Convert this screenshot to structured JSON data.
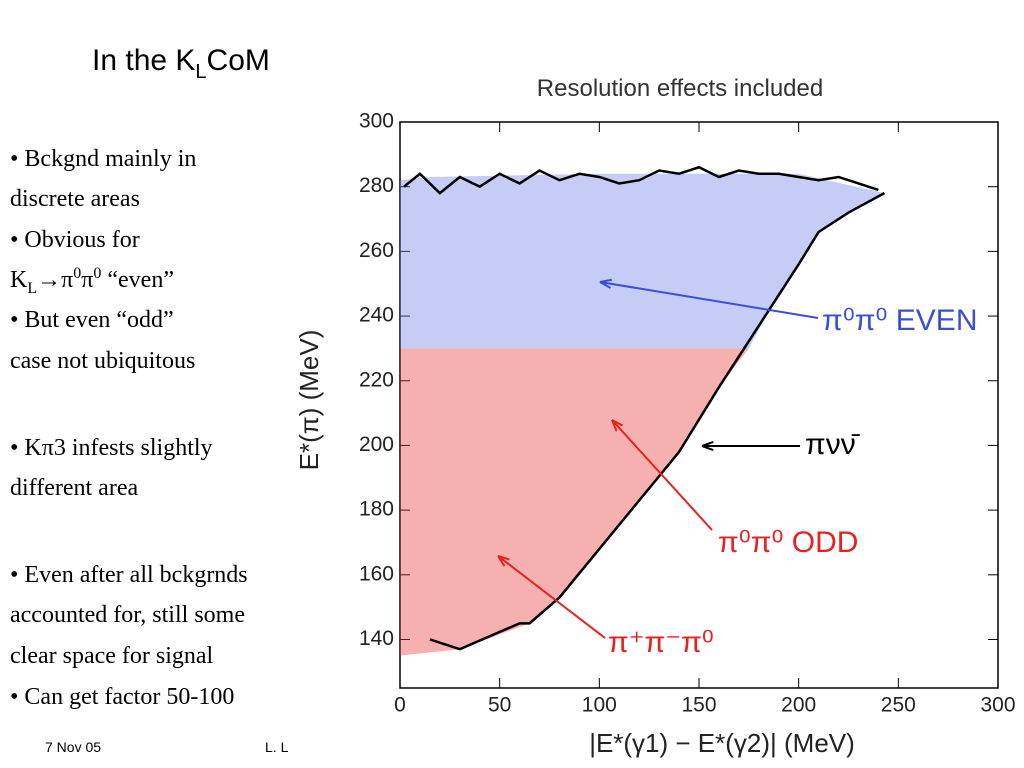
{
  "slide": {
    "title": [
      "In the K",
      "L",
      "CoM"
    ],
    "bullets": [
      [
        "• Bckgnd mainly in",
        "discrete areas"
      ],
      [
        "• Obvious for",
        [
          "K",
          "L",
          "→π",
          "0",
          "π",
          "0",
          " “even”"
        ]
      ],
      [
        "• But even “odd”",
        "case not ubiquitous"
      ],
      [
        "• Kπ3 infests slightly",
        "different area"
      ],
      [
        "• Even after all bckgrnds",
        "accounted for, still some",
        "clear space for signal"
      ],
      [
        "• Can get factor 50-100"
      ]
    ],
    "footer": [
      "7 Nov 05",
      "L. L"
    ]
  },
  "chart_data": {
    "type": "line",
    "title": "Resolution effects included",
    "xlabel": "|E*(γ1) − E*(γ2)|   (MeV)",
    "ylabel": "E*(π)   (MeV)",
    "xlim": [
      0,
      300
    ],
    "xticks": [
      0,
      50,
      100,
      150,
      200,
      250,
      300
    ],
    "ylim": [
      125,
      300
    ],
    "yticks": [
      140,
      160,
      180,
      200,
      220,
      240,
      260,
      280,
      300
    ],
    "series": [
      {
        "color": "#6f7fe8",
        "fill": true,
        "opacity": 0.4,
        "x": [
          0,
          0,
          15,
          100,
          200,
          243,
          225,
          210,
          200,
          187,
          175
        ],
        "values": [
          230,
          282,
          283,
          284,
          284,
          278,
          272,
          266,
          256,
          244,
          230
        ]
      },
      {
        "color": "#e83a3a",
        "fill": true,
        "opacity": 0.4,
        "x": [
          0,
          0,
          175,
          160,
          140,
          120,
          100,
          80,
          65,
          30,
          15
        ],
        "values": [
          135,
          230,
          230,
          218,
          198,
          183,
          168,
          153,
          145,
          137,
          136
        ]
      },
      {
        "color": "#000000",
        "fill": false,
        "x": [
          15,
          30,
          60,
          65,
          80,
          100,
          120,
          140,
          160,
          180,
          200,
          210,
          225,
          243
        ],
        "values": [
          140,
          137,
          145,
          145,
          153,
          168,
          183,
          198,
          218,
          237,
          256,
          266,
          272,
          278
        ]
      },
      {
        "color": "#000000",
        "fill": false,
        "x": [
          2,
          10,
          20,
          30,
          40,
          50,
          60,
          70,
          80,
          90,
          100,
          110,
          120,
          130,
          140,
          150,
          160,
          170,
          180,
          190,
          200,
          210,
          220,
          230,
          240
        ],
        "values": [
          280,
          284,
          278,
          283,
          280,
          284,
          281,
          285,
          282,
          284,
          283,
          281,
          282,
          285,
          284,
          286,
          283,
          285,
          284,
          284,
          283,
          282,
          283,
          281,
          279
        ]
      }
    ],
    "annotations": [
      {
        "text": "π⁰π⁰ EVEN",
        "color": "#3a4fd8"
      },
      {
        "text": "πνν̄",
        "color": "#000000"
      },
      {
        "text": "π⁰π⁰ ODD",
        "color": "#e82020"
      },
      {
        "text": "π⁺π⁻π⁰",
        "color": "#e82020"
      }
    ]
  }
}
